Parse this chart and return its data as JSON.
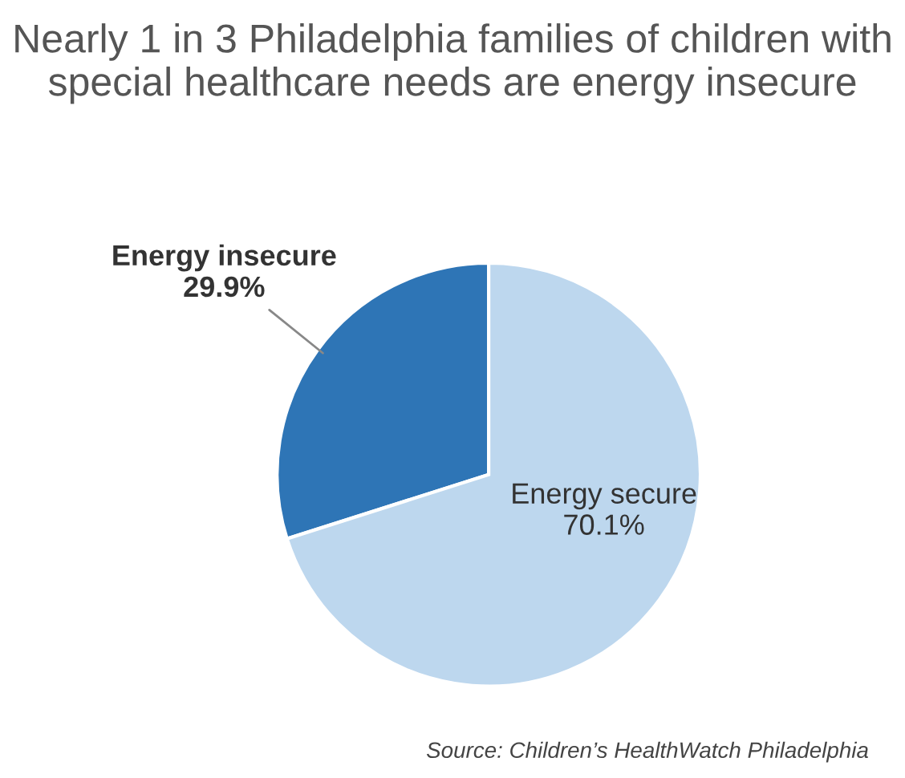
{
  "chart_data": {
    "type": "pie",
    "title": "Nearly 1 in 3 Philadelphia families of children with special healthcare needs are energy insecure",
    "categories": [
      "Energy insecure",
      "Energy secure"
    ],
    "values": [
      29.9,
      70.1
    ],
    "colors": [
      "#2e75b6",
      "#bdd7ee"
    ],
    "value_labels": [
      "29.9%",
      "70.1%"
    ],
    "legend": false,
    "annotations": [
      "Source: Children’s HealthWatch Philadelphia"
    ]
  }
}
